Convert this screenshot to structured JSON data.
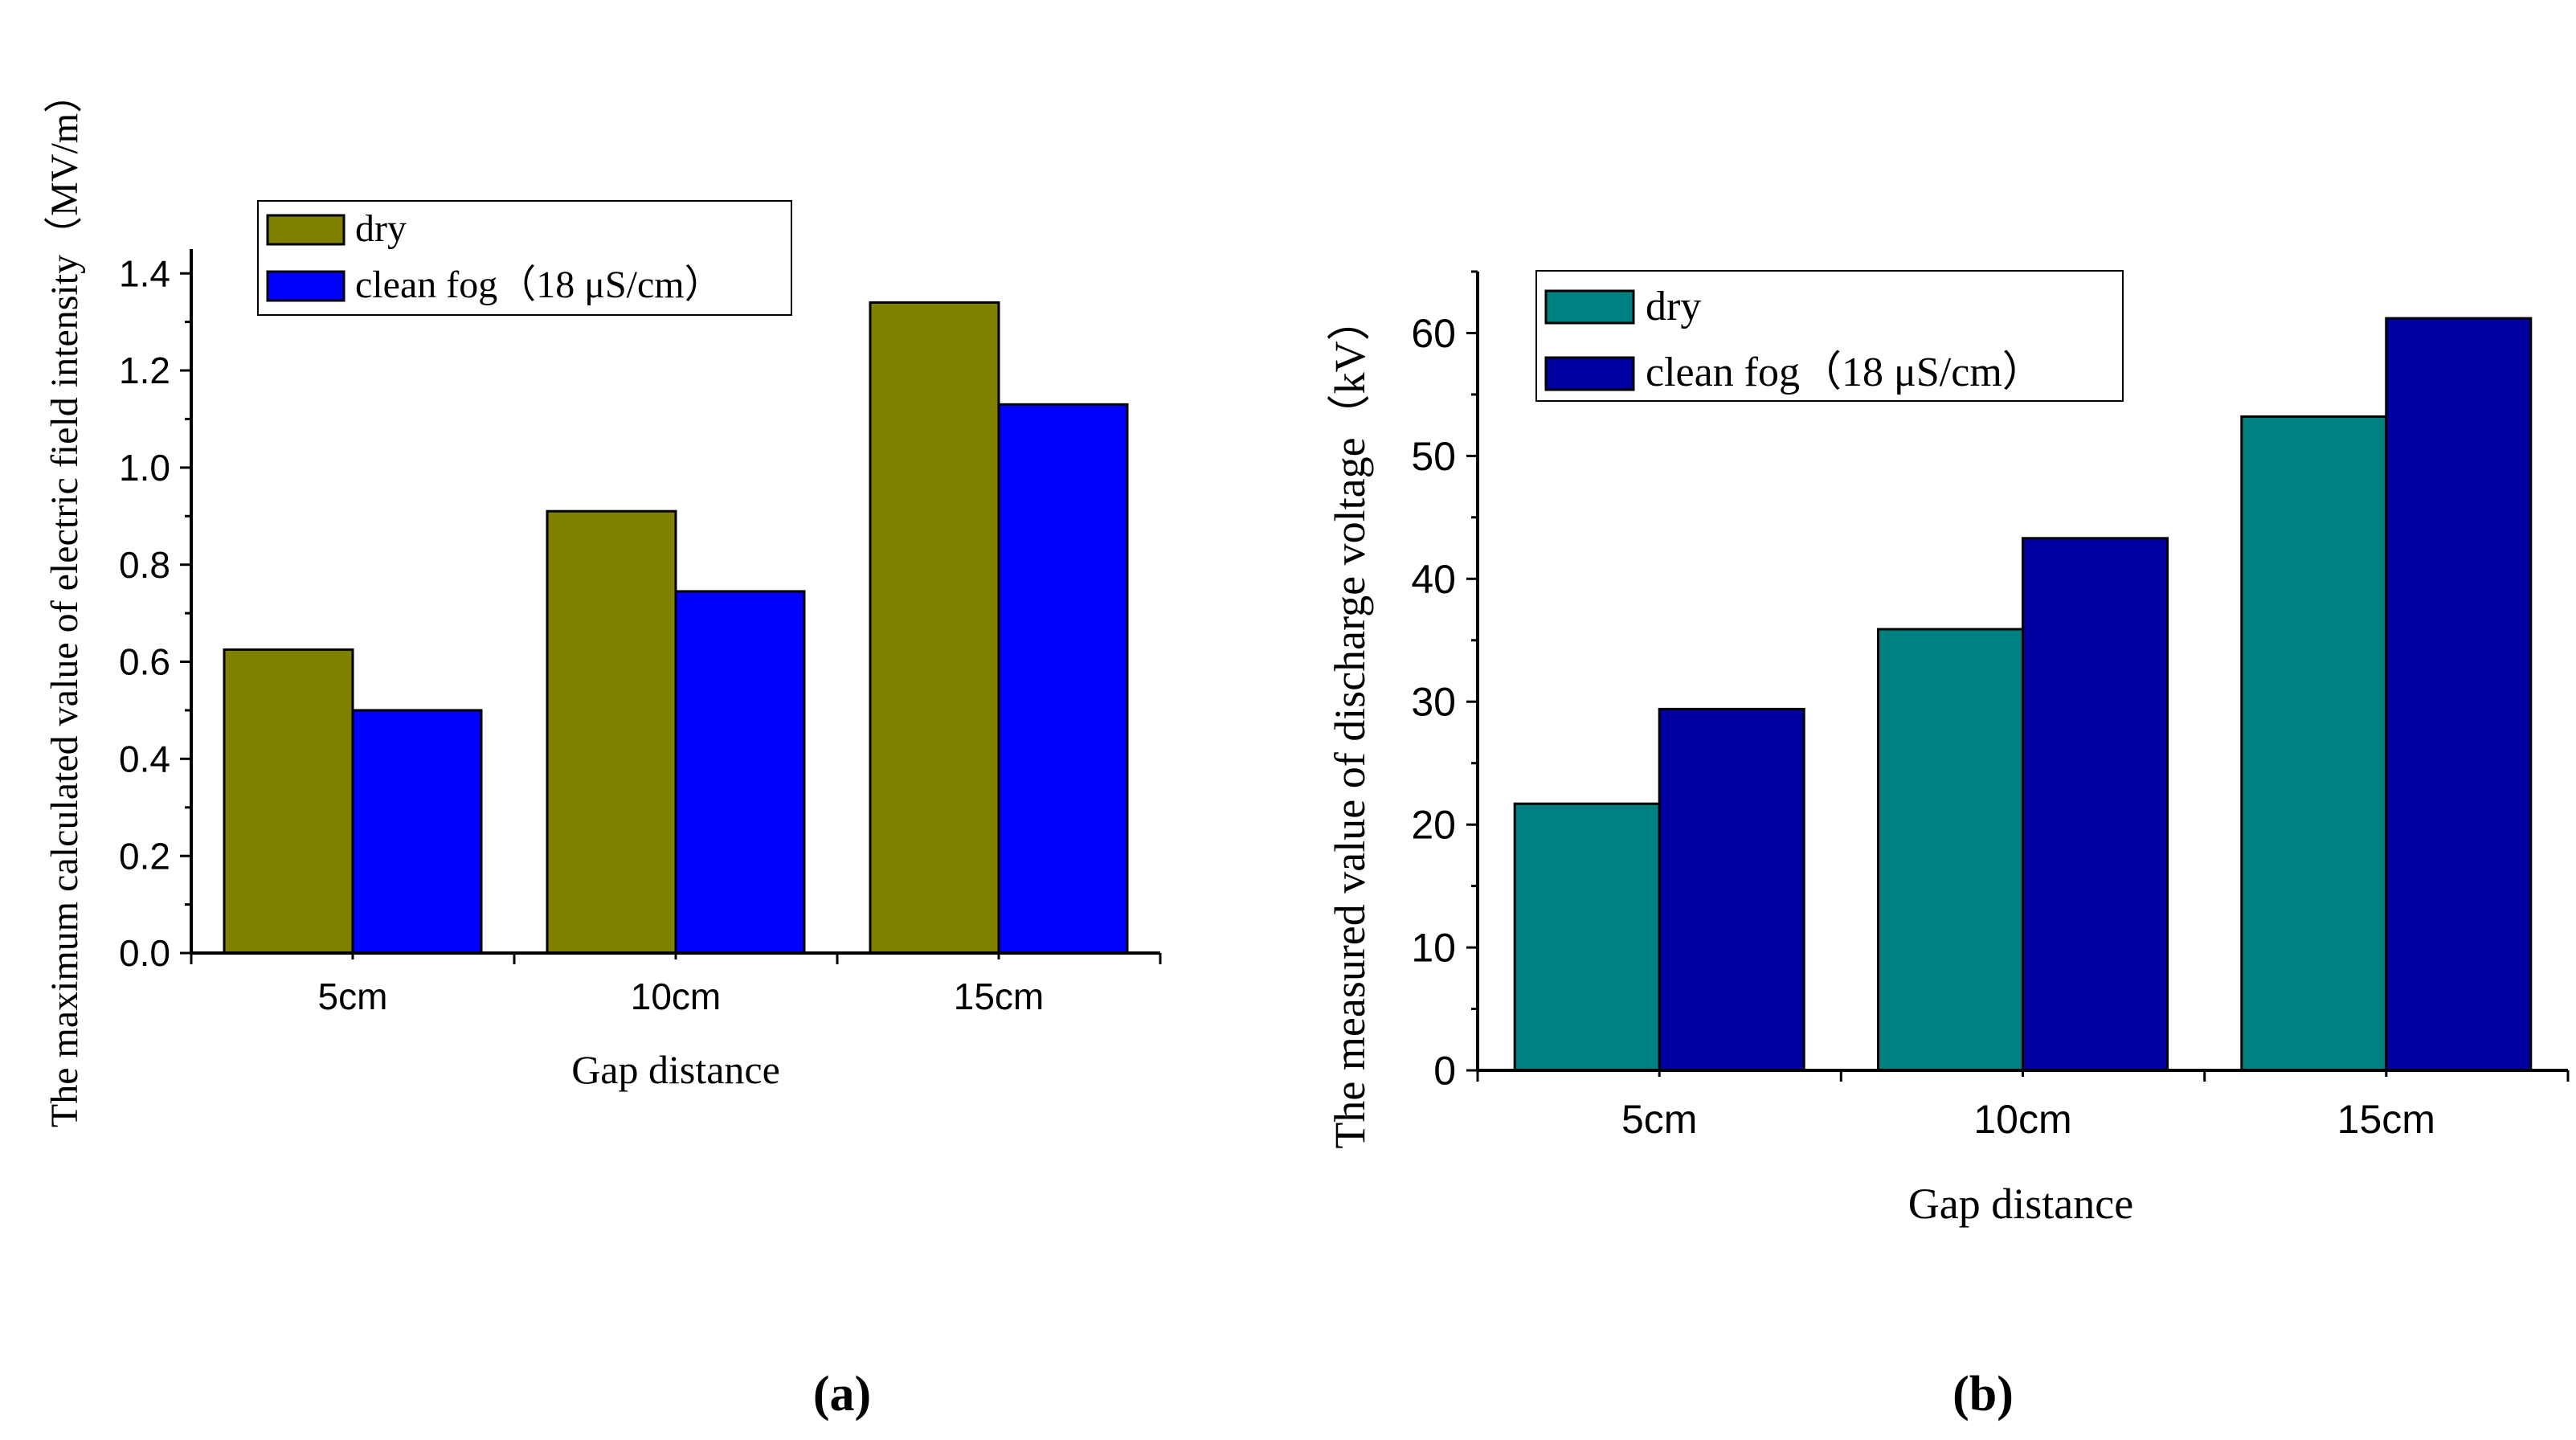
{
  "chart_data": [
    {
      "id": "a",
      "type": "bar",
      "panel_label": "(a)",
      "title": "",
      "xlabel": "Gap distance",
      "ylabel": "The maximum calculated value of electric field intensity（MV/m）",
      "categories": [
        "5cm",
        "10cm",
        "15cm"
      ],
      "ylim": [
        0,
        1.45
      ],
      "yticks": [
        "0.0",
        "0.2",
        "0.4",
        "0.6",
        "0.8",
        "1.0",
        "1.2",
        "1.4"
      ],
      "series": [
        {
          "name": "dry",
          "values": [
            0.625,
            0.91,
            1.34
          ],
          "color": "#808000"
        },
        {
          "name": "clean fog（18 μS/cm）",
          "values": [
            0.5,
            0.745,
            1.13
          ],
          "color": "#0000ff"
        }
      ],
      "legend_position": "top-left",
      "grid": false
    },
    {
      "id": "b",
      "type": "bar",
      "panel_label": "(b)",
      "title": "",
      "xlabel": "Gap distance",
      "ylabel": "The measured value of discharge voltage（kV）",
      "categories": [
        "5cm",
        "10cm",
        "15cm"
      ],
      "ylim": [
        0,
        65
      ],
      "yticks": [
        "0",
        "10",
        "20",
        "30",
        "40",
        "50",
        "60"
      ],
      "series": [
        {
          "name": "dry",
          "values": [
            21.7,
            35.9,
            53.2
          ],
          "color": "#008080"
        },
        {
          "name": "clean fog（18 μS/cm）",
          "values": [
            29.4,
            43.3,
            61.2
          ],
          "color": "#0000a0"
        }
      ],
      "legend_position": "top-left",
      "grid": false
    }
  ]
}
